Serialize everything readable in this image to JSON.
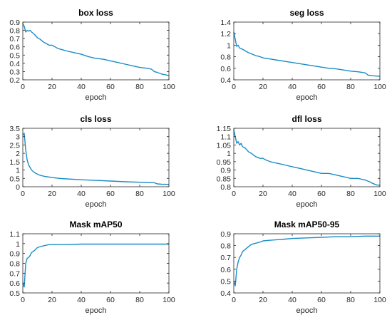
{
  "chart_data": [
    {
      "type": "line",
      "title": "box loss",
      "xlabel": "epoch",
      "ylabel": "",
      "xlim": [
        0,
        100
      ],
      "ylim": [
        0.2,
        0.9
      ],
      "xticks": [
        0,
        20,
        40,
        60,
        80,
        100
      ],
      "xtick_labels": [
        "0",
        "20",
        "40",
        "60",
        "80",
        "100"
      ],
      "yticks": [
        0.2,
        0.3,
        0.4,
        0.5,
        0.6,
        0.7,
        0.8,
        0.9
      ],
      "ytick_labels": [
        "0.2",
        "0.3",
        "0.4",
        "0.5",
        "0.6",
        "0.7",
        "0.8",
        "0.9"
      ],
      "grid": false,
      "color": "#1a8cc6",
      "series": [
        {
          "x": [
            0,
            1,
            2,
            3,
            4,
            5,
            6,
            8,
            10,
            12,
            14,
            16,
            18,
            20,
            22,
            24,
            26,
            28,
            30,
            35,
            40,
            45,
            50,
            55,
            60,
            65,
            70,
            75,
            80,
            85,
            88,
            90,
            92,
            95,
            98,
            100
          ],
          "y": [
            0.88,
            0.85,
            0.78,
            0.8,
            0.79,
            0.8,
            0.78,
            0.75,
            0.71,
            0.69,
            0.66,
            0.64,
            0.62,
            0.62,
            0.6,
            0.58,
            0.57,
            0.56,
            0.55,
            0.53,
            0.51,
            0.48,
            0.46,
            0.45,
            0.43,
            0.41,
            0.39,
            0.37,
            0.35,
            0.34,
            0.33,
            0.3,
            0.29,
            0.27,
            0.26,
            0.25
          ]
        }
      ]
    },
    {
      "type": "line",
      "title": "seg loss",
      "xlabel": "epoch",
      "ylabel": "",
      "xlim": [
        0,
        100
      ],
      "ylim": [
        0.4,
        1.4
      ],
      "xticks": [
        0,
        20,
        40,
        60,
        80,
        100
      ],
      "xtick_labels": [
        "0",
        "20",
        "40",
        "60",
        "80",
        "100"
      ],
      "yticks": [
        0.4,
        0.6,
        0.8,
        1.0,
        1.2,
        1.4
      ],
      "ytick_labels": [
        "0.4",
        "0.6",
        "0.8",
        "1",
        "1.2",
        "1.4"
      ],
      "grid": false,
      "color": "#1a8cc6",
      "series": [
        {
          "x": [
            0,
            1,
            2,
            3,
            4,
            6,
            8,
            10,
            12,
            15,
            18,
            20,
            25,
            30,
            35,
            40,
            45,
            50,
            55,
            60,
            65,
            70,
            75,
            80,
            85,
            90,
            92,
            95,
            100
          ],
          "y": [
            1.23,
            1.1,
            0.98,
            1.0,
            0.95,
            0.93,
            0.9,
            0.87,
            0.85,
            0.82,
            0.8,
            0.78,
            0.76,
            0.74,
            0.72,
            0.7,
            0.68,
            0.66,
            0.64,
            0.62,
            0.6,
            0.59,
            0.57,
            0.55,
            0.54,
            0.52,
            0.48,
            0.47,
            0.46
          ]
        }
      ]
    },
    {
      "type": "line",
      "title": "cls loss",
      "xlabel": "epoch",
      "ylabel": "",
      "xlim": [
        0,
        100
      ],
      "ylim": [
        0,
        3.5
      ],
      "xticks": [
        0,
        20,
        40,
        60,
        80,
        100
      ],
      "xtick_labels": [
        "0",
        "20",
        "40",
        "60",
        "80",
        "100"
      ],
      "yticks": [
        0,
        0.5,
        1.0,
        1.5,
        2.0,
        2.5,
        3.0,
        3.5
      ],
      "ytick_labels": [
        "0",
        "0.5",
        "1",
        "1.5",
        "2",
        "2.5",
        "3",
        "3.5"
      ],
      "grid": false,
      "color": "#1a8cc6",
      "series": [
        {
          "x": [
            0,
            1,
            2,
            3,
            4,
            5,
            6,
            8,
            10,
            12,
            15,
            20,
            25,
            30,
            40,
            50,
            60,
            70,
            80,
            90,
            92,
            95,
            100
          ],
          "y": [
            3.1,
            3.2,
            2.2,
            1.6,
            1.3,
            1.15,
            1.0,
            0.85,
            0.75,
            0.68,
            0.62,
            0.55,
            0.5,
            0.47,
            0.42,
            0.38,
            0.34,
            0.3,
            0.27,
            0.24,
            0.17,
            0.15,
            0.14
          ]
        }
      ]
    },
    {
      "type": "line",
      "title": "dfl loss",
      "xlabel": "epoch",
      "ylabel": "",
      "xlim": [
        0,
        100
      ],
      "ylim": [
        0.8,
        1.15
      ],
      "xticks": [
        0,
        20,
        40,
        60,
        80,
        100
      ],
      "xtick_labels": [
        "0",
        "20",
        "40",
        "60",
        "80",
        "100"
      ],
      "yticks": [
        0.8,
        0.85,
        0.9,
        0.95,
        1.0,
        1.05,
        1.1,
        1.15
      ],
      "ytick_labels": [
        "0.8",
        "0.85",
        "0.9",
        "0.95",
        "1",
        "1.05",
        "1.1",
        "1.15"
      ],
      "grid": false,
      "color": "#1a8cc6",
      "series": [
        {
          "x": [
            0,
            1,
            2,
            3,
            4,
            5,
            6,
            8,
            10,
            12,
            15,
            18,
            20,
            22,
            25,
            30,
            35,
            40,
            45,
            50,
            55,
            60,
            65,
            70,
            75,
            80,
            85,
            90,
            93,
            95,
            98,
            100
          ],
          "y": [
            1.14,
            1.1,
            1.06,
            1.07,
            1.05,
            1.06,
            1.04,
            1.03,
            1.01,
            1.0,
            0.98,
            0.97,
            0.97,
            0.96,
            0.95,
            0.94,
            0.93,
            0.92,
            0.91,
            0.9,
            0.89,
            0.88,
            0.88,
            0.87,
            0.86,
            0.85,
            0.85,
            0.84,
            0.83,
            0.82,
            0.81,
            0.81
          ]
        }
      ]
    },
    {
      "type": "line",
      "title": "Mask mAP50",
      "xlabel": "epoch",
      "ylabel": "",
      "xlim": [
        0,
        100
      ],
      "ylim": [
        0.5,
        1.1
      ],
      "xticks": [
        0,
        20,
        40,
        60,
        80,
        100
      ],
      "xtick_labels": [
        "0",
        "20",
        "40",
        "60",
        "80",
        "100"
      ],
      "yticks": [
        0.5,
        0.6,
        0.7,
        0.8,
        0.9,
        1.0,
        1.1
      ],
      "ytick_labels": [
        "0.5",
        "0.6",
        "0.7",
        "0.8",
        "0.9",
        "1",
        "1.1"
      ],
      "grid": false,
      "color": "#1a8cc6",
      "series": [
        {
          "x": [
            0,
            1,
            2,
            3,
            4,
            5,
            6,
            8,
            10,
            12,
            15,
            18,
            20,
            25,
            30,
            40,
            50,
            60,
            70,
            80,
            90,
            100
          ],
          "y": [
            0.6,
            0.56,
            0.8,
            0.85,
            0.86,
            0.88,
            0.91,
            0.93,
            0.96,
            0.97,
            0.98,
            0.99,
            0.99,
            0.99,
            0.99,
            0.995,
            0.995,
            0.995,
            0.995,
            0.995,
            0.995,
            0.995
          ]
        }
      ]
    },
    {
      "type": "line",
      "title": "Mask mAP50-95",
      "xlabel": "epoch",
      "ylabel": "",
      "xlim": [
        0,
        100
      ],
      "ylim": [
        0.4,
        0.9
      ],
      "xticks": [
        0,
        20,
        40,
        60,
        80,
        100
      ],
      "xtick_labels": [
        "0",
        "20",
        "40",
        "60",
        "80",
        "100"
      ],
      "yticks": [
        0.4,
        0.5,
        0.6,
        0.7,
        0.8,
        0.9
      ],
      "ytick_labels": [
        "0.4",
        "0.5",
        "0.6",
        "0.7",
        "0.8",
        "0.9"
      ],
      "grid": false,
      "color": "#1a8cc6",
      "series": [
        {
          "x": [
            0,
            1,
            2,
            3,
            4,
            5,
            6,
            8,
            10,
            12,
            15,
            18,
            20,
            25,
            30,
            35,
            40,
            50,
            60,
            70,
            80,
            90,
            100
          ],
          "y": [
            0.5,
            0.46,
            0.6,
            0.66,
            0.7,
            0.72,
            0.75,
            0.77,
            0.79,
            0.81,
            0.82,
            0.83,
            0.84,
            0.845,
            0.85,
            0.855,
            0.86,
            0.865,
            0.87,
            0.875,
            0.875,
            0.88,
            0.88
          ]
        }
      ]
    }
  ]
}
